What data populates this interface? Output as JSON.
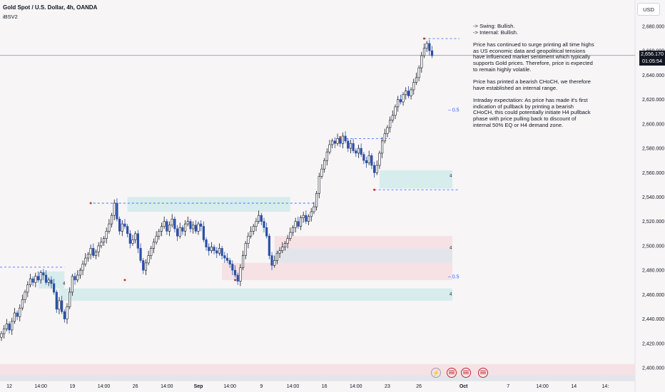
{
  "header": {
    "symbol": "Gold Spot / U.S. Dollar, 4h, OANDA",
    "indicator": "iBSV2"
  },
  "currency_button": "USD",
  "price_tag": {
    "price": "2,656.170",
    "countdown": "01:05:54"
  },
  "notes": [
    "-> Swing:  Bullish.",
    "-> Internal:  Bullish.",
    "Price has continued to surge printing all time highs as US economic data and geopolitical tensions have influenced market sentiment which typically supports Gold prices. Therefore, price is expected to remain highly volatile.",
    "Price has printed a bearish CHoCH, we therefore have established an internal range.",
    "Intraday expectation: As price has made it's first indication of pullback by printing a bearish CHoCH, this could potentially initiate H4 pullback phase with price pulling back to discount of internal 50% EQ or H4 demand zone."
  ],
  "bottom_icons": [
    "lightning-icon",
    "us-flag-icon",
    "us-flag-icon",
    "us-flag-icon"
  ],
  "colors": {
    "up": "#131722",
    "down": "#2b4fa8",
    "demand": "#d7ecec",
    "supply": "#f6e1e4",
    "eq": "#e4e5ea",
    "level": "#2962ff"
  },
  "chart_data": {
    "type": "candlestick",
    "title": "Gold Spot / U.S. Dollar, 4h, OANDA",
    "ylim": [
      2395,
      2695
    ],
    "y_ticks": [
      2400,
      2420,
      2440,
      2460,
      2480,
      2500,
      2520,
      2540,
      2560,
      2580,
      2600,
      2620,
      2640,
      2660,
      2680
    ],
    "y_tick_labels": [
      "2,400.000",
      "2,420.000",
      "2,440.000",
      "2,460.000",
      "2,480.000",
      "2,500.000",
      "2,520.000",
      "2,540.000",
      "2,560.000",
      "2,580.000",
      "2,600.000",
      "2,620.000",
      "2,640.000",
      "2,660.000",
      "2,680.000"
    ],
    "x_labels": [
      "12",
      "14:00",
      "19",
      "14:00",
      "26",
      "14:00",
      "Sep",
      "14:00",
      "9",
      "14:00",
      "16",
      "14:00",
      "23",
      "26",
      "Oct",
      "7",
      "14:00",
      "14",
      "14:"
    ],
    "x_label_bars": [
      3,
      15,
      27,
      39,
      51,
      63,
      75,
      87,
      99,
      111,
      123,
      135,
      147,
      159,
      176,
      193,
      206,
      218,
      230
    ],
    "last_price": 2656.17,
    "closes": [
      2428,
      2432,
      2436,
      2431,
      2438,
      2445,
      2442,
      2449,
      2456,
      2462,
      2468,
      2473,
      2470,
      2475,
      2472,
      2478,
      2476,
      2470,
      2472,
      2469,
      2462,
      2448,
      2455,
      2446,
      2440,
      2450,
      2462,
      2475,
      2472,
      2476,
      2480,
      2485,
      2490,
      2493,
      2498,
      2492,
      2495,
      2500,
      2503,
      2506,
      2512,
      2518,
      2525,
      2535,
      2522,
      2512,
      2518,
      2516,
      2510,
      2502,
      2505,
      2510,
      2498,
      2488,
      2480,
      2486,
      2492,
      2498,
      2503,
      2508,
      2512,
      2516,
      2520,
      2512,
      2517,
      2522,
      2514,
      2508,
      2515,
      2512,
      2518,
      2520,
      2514,
      2517,
      2512,
      2518,
      2516,
      2505,
      2499,
      2496,
      2499,
      2496,
      2494,
      2498,
      2492,
      2490,
      2488,
      2485,
      2480,
      2476,
      2471,
      2482,
      2492,
      2502,
      2508,
      2512,
      2516,
      2520,
      2525,
      2520,
      2515,
      2508,
      2492,
      2484,
      2488,
      2494,
      2496,
      2499,
      2502,
      2506,
      2511,
      2515,
      2520,
      2516,
      2523,
      2525,
      2520,
      2524,
      2528,
      2532,
      2543,
      2557,
      2563,
      2570,
      2577,
      2583,
      2586,
      2584,
      2588,
      2584,
      2590,
      2586,
      2580,
      2584,
      2578,
      2576,
      2580,
      2575,
      2570,
      2568,
      2574,
      2566,
      2560,
      2566,
      2576,
      2586,
      2592,
      2597,
      2603,
      2607,
      2614,
      2620,
      2618,
      2624,
      2627,
      2623,
      2628,
      2634,
      2638,
      2646,
      2656,
      2662,
      2666,
      2660,
      2656
    ],
    "swing_high": {
      "label": "swing-high",
      "value": 2670
    },
    "eq_label": "0.5",
    "zone_tag": "4"
  }
}
